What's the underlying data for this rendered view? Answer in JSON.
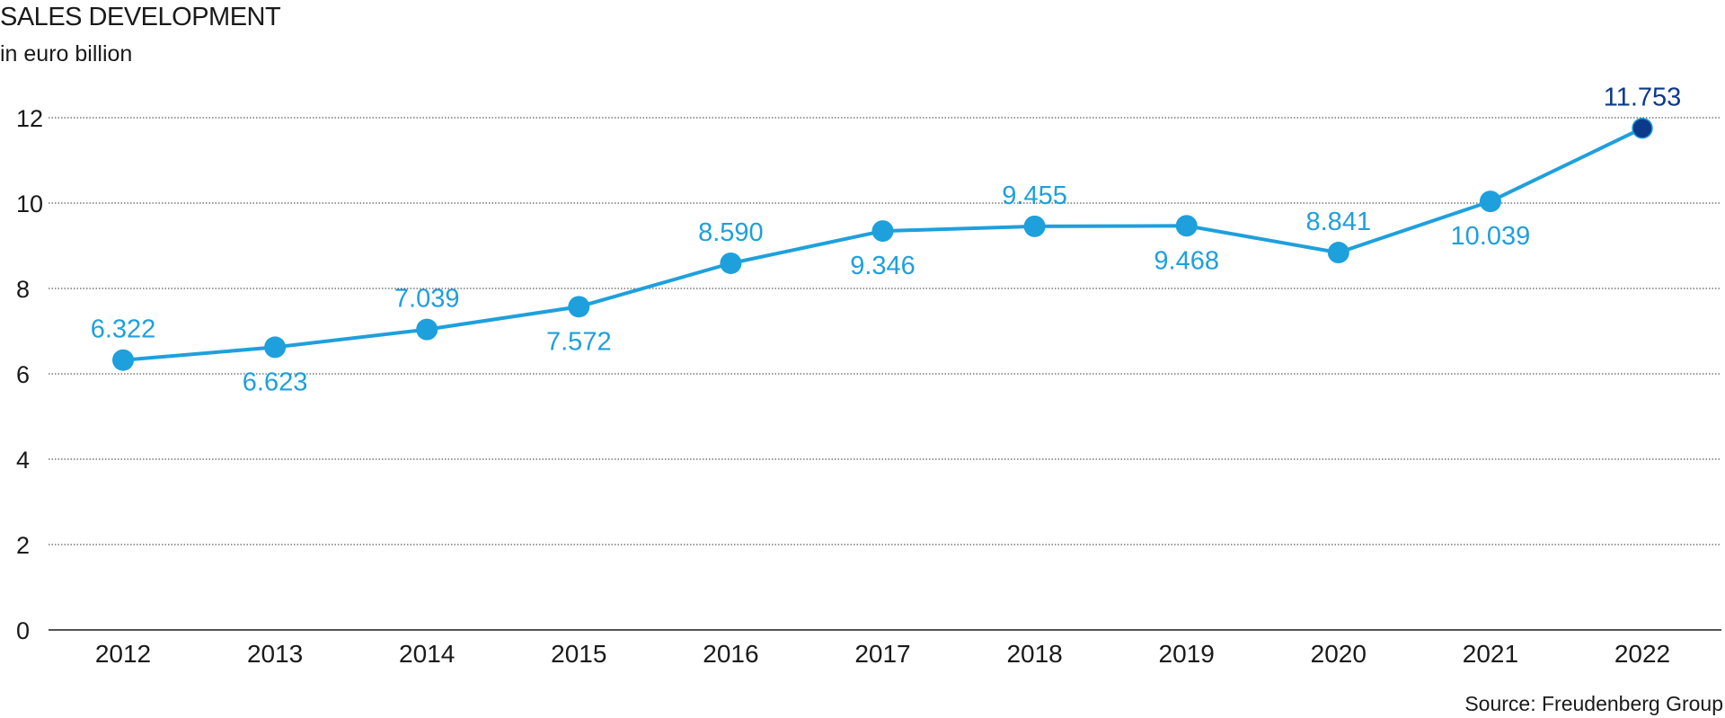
{
  "chart_data": {
    "type": "line",
    "title": "SALES DEVELOPMENT",
    "subtitle": "in euro billion",
    "source": "Source: Freudenberg Group",
    "categories": [
      "2012",
      "2013",
      "2014",
      "2015",
      "2016",
      "2017",
      "2018",
      "2019",
      "2020",
      "2021",
      "2022"
    ],
    "series": [
      {
        "values": [
          6.322,
          6.623,
          7.039,
          7.572,
          8.59,
          9.346,
          9.455,
          9.468,
          8.841,
          10.039,
          11.753
        ],
        "labels": [
          "6.322",
          "6.623",
          "7.039",
          "7.572",
          "8.590",
          "9.346",
          "9.455",
          "9.468",
          "8.841",
          "10.039",
          "11.753"
        ],
        "label_positions": [
          "above",
          "below",
          "above",
          "below",
          "above",
          "below",
          "above",
          "below",
          "above",
          "below",
          "above"
        ],
        "highlight_index": 10
      }
    ],
    "yticks": [
      "0",
      "2",
      "4",
      "6",
      "8",
      "10",
      "12"
    ],
    "ylim": [
      0,
      12.6
    ],
    "grid": true,
    "colors": {
      "line": "#1ea0dc",
      "point": "#1ea0dc",
      "highlight": "#0b3a8a",
      "label": "#1ea0dc",
      "highlight_label": "#0b3a8a"
    }
  }
}
